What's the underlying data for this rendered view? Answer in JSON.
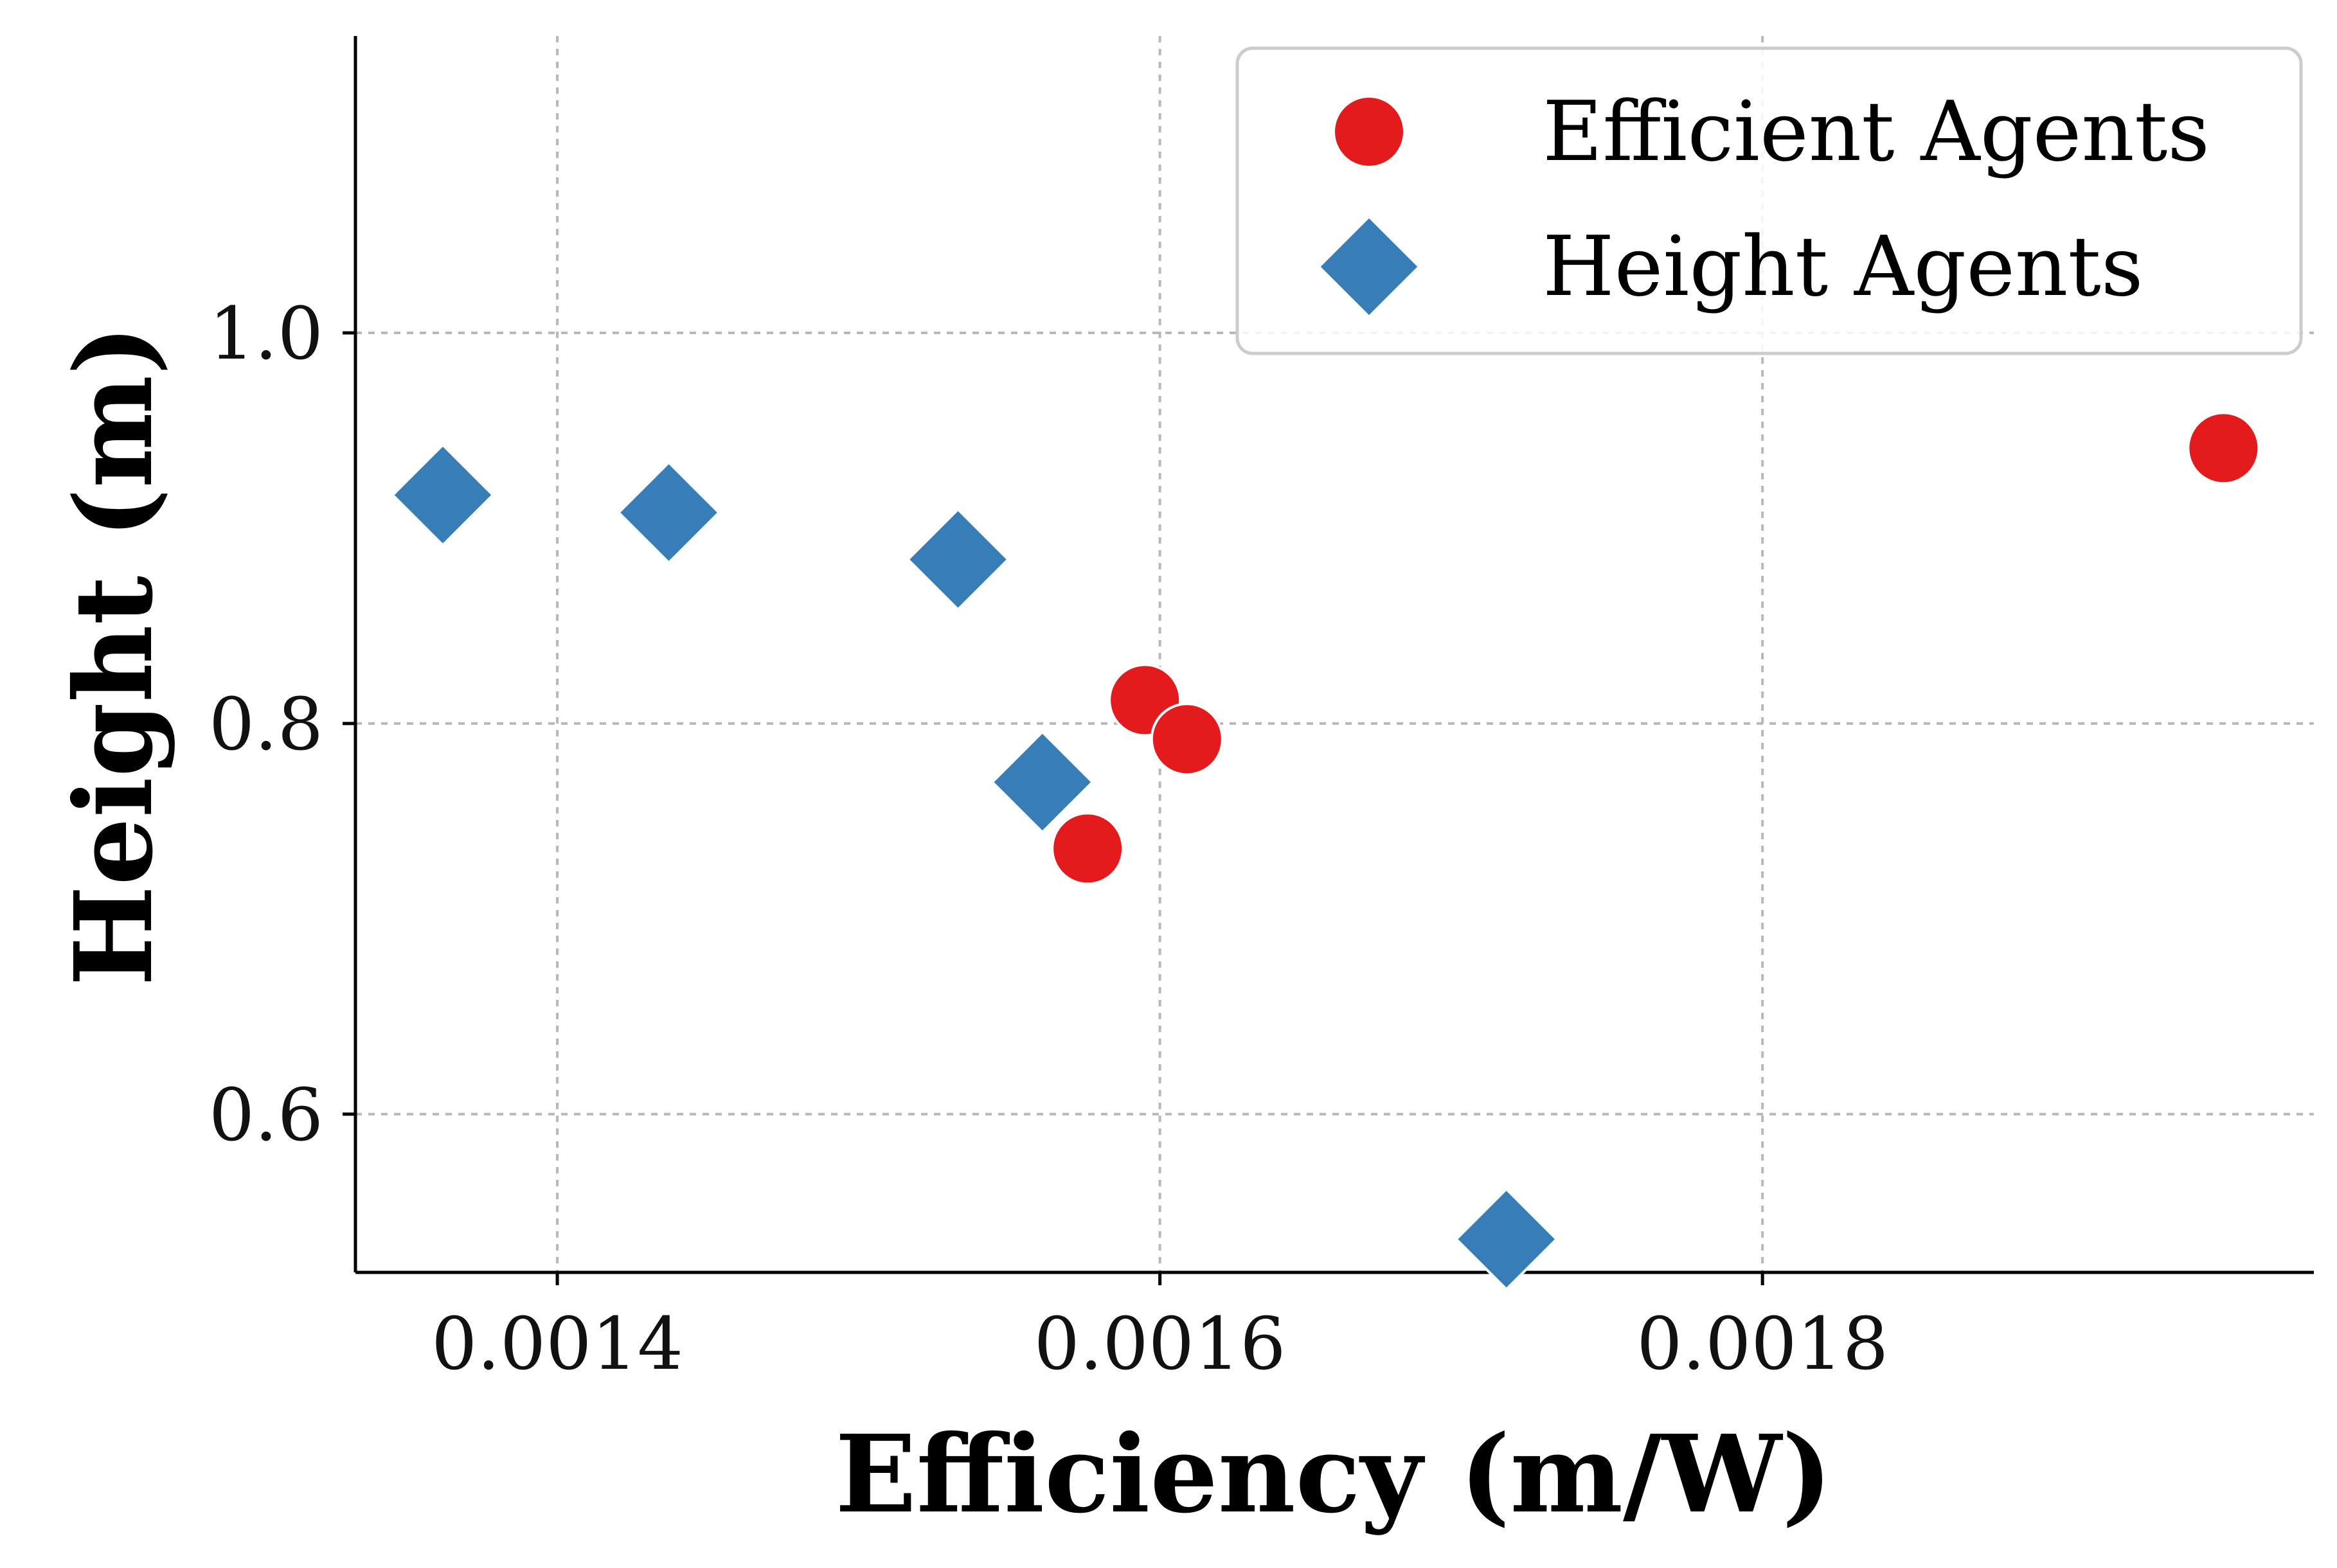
{
  "chart_data": {
    "type": "scatter",
    "title": "",
    "xlabel": "Efficiency (m/W)",
    "ylabel": "Height (m)",
    "xlim": [
      0.001333,
      0.001983
    ],
    "ylim": [
      0.519,
      1.152
    ],
    "xticks": [
      0.0014,
      0.0016,
      0.0018
    ],
    "xtick_labels": [
      "0.0014",
      "0.0016",
      "0.0018"
    ],
    "yticks": [
      0.6,
      0.8,
      1.0
    ],
    "ytick_labels": [
      "0.6",
      "0.8",
      "1.0"
    ],
    "grid": true,
    "legend_position": "top-right",
    "series": [
      {
        "name": "Efficient Agents",
        "marker": "circle",
        "color": "#e41a1c",
        "points": [
          {
            "x": 0.001576,
            "y": 0.736
          },
          {
            "x": 0.001595,
            "y": 0.812
          },
          {
            "x": 0.001609,
            "y": 0.792
          },
          {
            "x": 0.001953,
            "y": 0.941
          }
        ]
      },
      {
        "name": "Height Agents",
        "marker": "diamond",
        "color": "#377eb8",
        "points": [
          {
            "x": 0.001362,
            "y": 0.917
          },
          {
            "x": 0.001437,
            "y": 0.908
          },
          {
            "x": 0.001533,
            "y": 0.884
          },
          {
            "x": 0.001561,
            "y": 0.77
          },
          {
            "x": 0.001715,
            "y": 0.536
          }
        ]
      }
    ]
  }
}
